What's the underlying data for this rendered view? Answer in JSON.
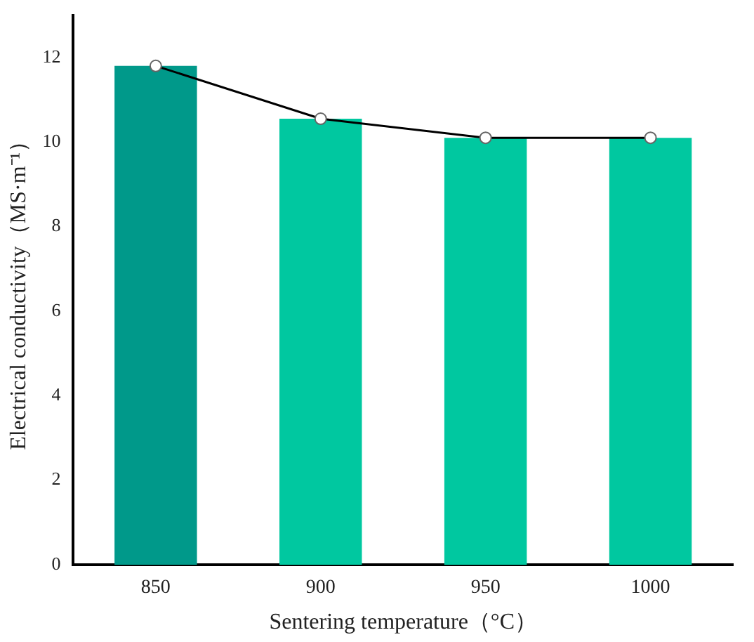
{
  "chart_data": {
    "type": "bar",
    "xlabel": "Sentering temperature（°C）",
    "ylabel": "Electrical conductivity（MS·m⁻¹）",
    "categories": [
      "850",
      "900",
      "950",
      "1000"
    ],
    "series": [
      {
        "type": "bar",
        "colors": [
          "#00998a",
          "#00c8a0",
          "#00c8a0",
          "#00c8a0"
        ],
        "values": [
          11.8,
          10.55,
          10.1,
          10.1
        ]
      },
      {
        "type": "line",
        "color": "#000000",
        "marker": "circle",
        "values": [
          11.8,
          10.55,
          10.1,
          10.1
        ]
      }
    ],
    "ylim": [
      0,
      13
    ],
    "yticks": [
      0,
      2,
      4,
      6,
      8,
      10,
      12
    ],
    "grid": false,
    "legend": false
  }
}
